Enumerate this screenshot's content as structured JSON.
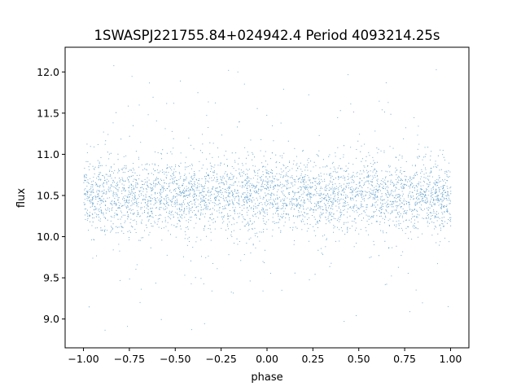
{
  "chart_data": {
    "type": "scatter",
    "title": "1SWASPJ221755.84+024942.4 Period 4093214.25s",
    "xlabel": "phase",
    "ylabel": "flux",
    "xlim": [
      -1.1,
      1.1
    ],
    "ylim": [
      8.65,
      12.3
    ],
    "xticks": [
      -1.0,
      -0.75,
      -0.5,
      -0.25,
      0.0,
      0.25,
      0.5,
      0.75,
      1.0
    ],
    "xtick_labels": [
      "−1.00",
      "−0.75",
      "−0.50",
      "−0.25",
      "0.00",
      "0.25",
      "0.50",
      "0.75",
      "1.00"
    ],
    "yticks": [
      9.0,
      9.5,
      10.0,
      10.5,
      11.0,
      11.5,
      12.0
    ],
    "ytick_labels": [
      "9.0",
      "9.5",
      "10.0",
      "10.5",
      "11.0",
      "11.5",
      "12.0"
    ],
    "grid": false,
    "point_color": "#1f77b4",
    "series": [
      {
        "phase_range": [
          -1.0,
          1.0
        ],
        "flux_median": 10.5,
        "flux_core_range": [
          10.0,
          11.0
        ],
        "flux_full_range": [
          8.85,
          12.15
        ],
        "point_count_approx": 40000
      }
    ]
  }
}
